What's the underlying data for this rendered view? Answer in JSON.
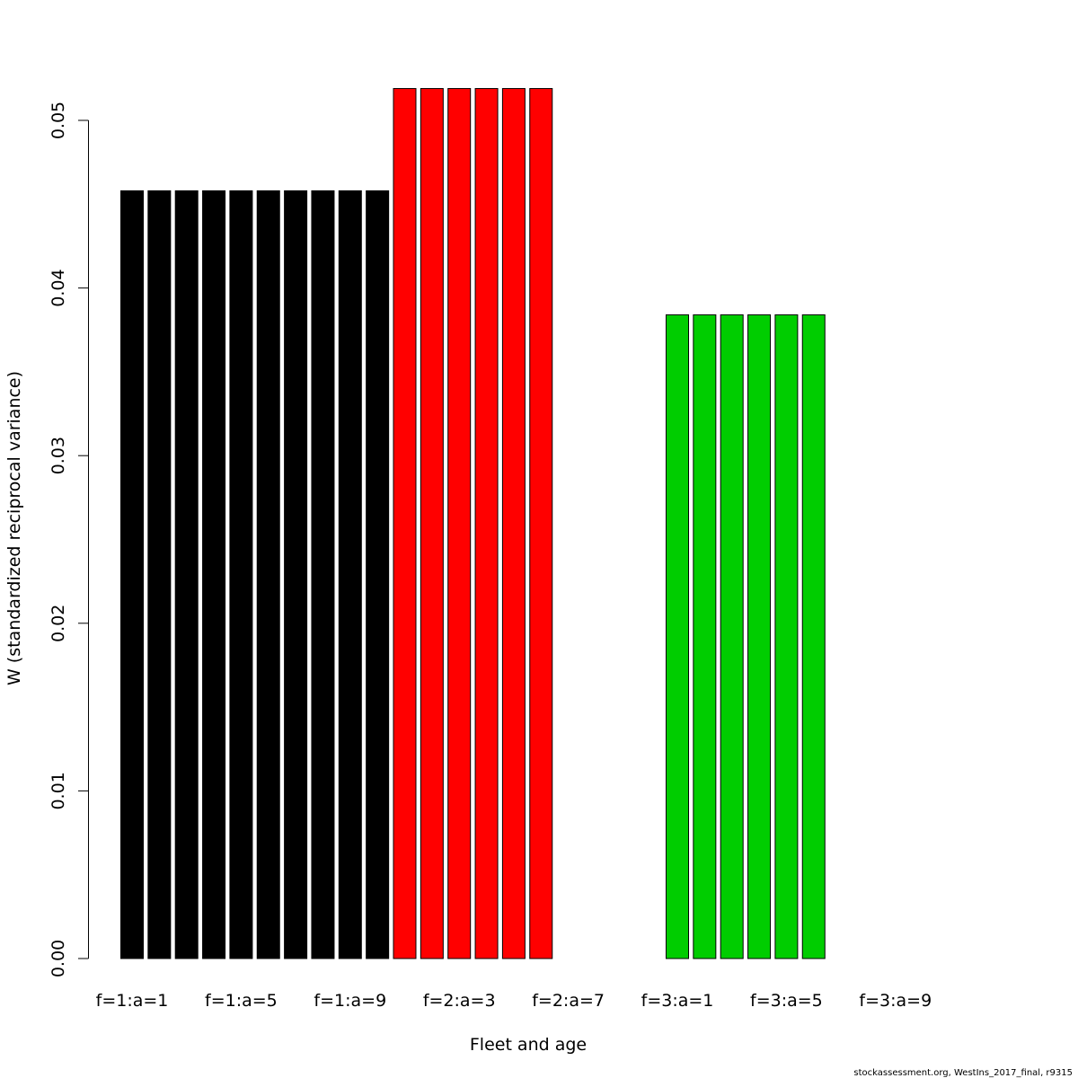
{
  "chart_data": {
    "type": "bar",
    "title": "",
    "xlabel": "Fleet and age",
    "ylabel": "W (standardized reciprocal variance)",
    "ylim": [
      0,
      0.05
    ],
    "yticks": [
      "0.00",
      "0.01",
      "0.02",
      "0.03",
      "0.04",
      "0.05"
    ],
    "ytick_values": [
      0,
      0.01,
      0.02,
      0.03,
      0.04,
      0.05
    ],
    "grid": false,
    "categories": [
      "f=1:a=1",
      "f=1:a=2",
      "f=1:a=3",
      "f=1:a=4",
      "f=1:a=5",
      "f=1:a=6",
      "f=1:a=7",
      "f=1:a=8",
      "f=1:a=9",
      "f=1:a=10",
      "f=2:a=1",
      "f=2:a=2",
      "f=2:a=3",
      "f=2:a=4",
      "f=2:a=5",
      "f=2:a=6",
      "f=2:a=7",
      "f=2:a=8",
      "f=2:a=9",
      "f=2:a=10",
      "f=3:a=1",
      "f=3:a=2",
      "f=3:a=3",
      "f=3:a=4",
      "f=3:a=5",
      "f=3:a=6",
      "f=3:a=7",
      "f=3:a=8",
      "f=3:a=9",
      "f=3:a=10"
    ],
    "xtick_labels": [
      "f=1:a=1",
      "f=1:a=5",
      "f=1:a=9",
      "f=2:a=3",
      "f=2:a=7",
      "f=3:a=1",
      "f=3:a=5",
      "f=3:a=9"
    ],
    "values": [
      0.0458,
      0.0458,
      0.0458,
      0.0458,
      0.0458,
      0.0458,
      0.0458,
      0.0458,
      0.0458,
      0.0458,
      0.0519,
      0.0519,
      0.0519,
      0.0519,
      0.0519,
      0.0519,
      0,
      0,
      0,
      0,
      0.0384,
      0.0384,
      0.0384,
      0.0384,
      0.0384,
      0.0384,
      0,
      0,
      0,
      0
    ],
    "fleet_colors": {
      "1": "#000000",
      "2": "#FF0000",
      "3": "#00CD00"
    }
  },
  "footer": "stockassessment.org, WestIns_2017_final, r9315"
}
